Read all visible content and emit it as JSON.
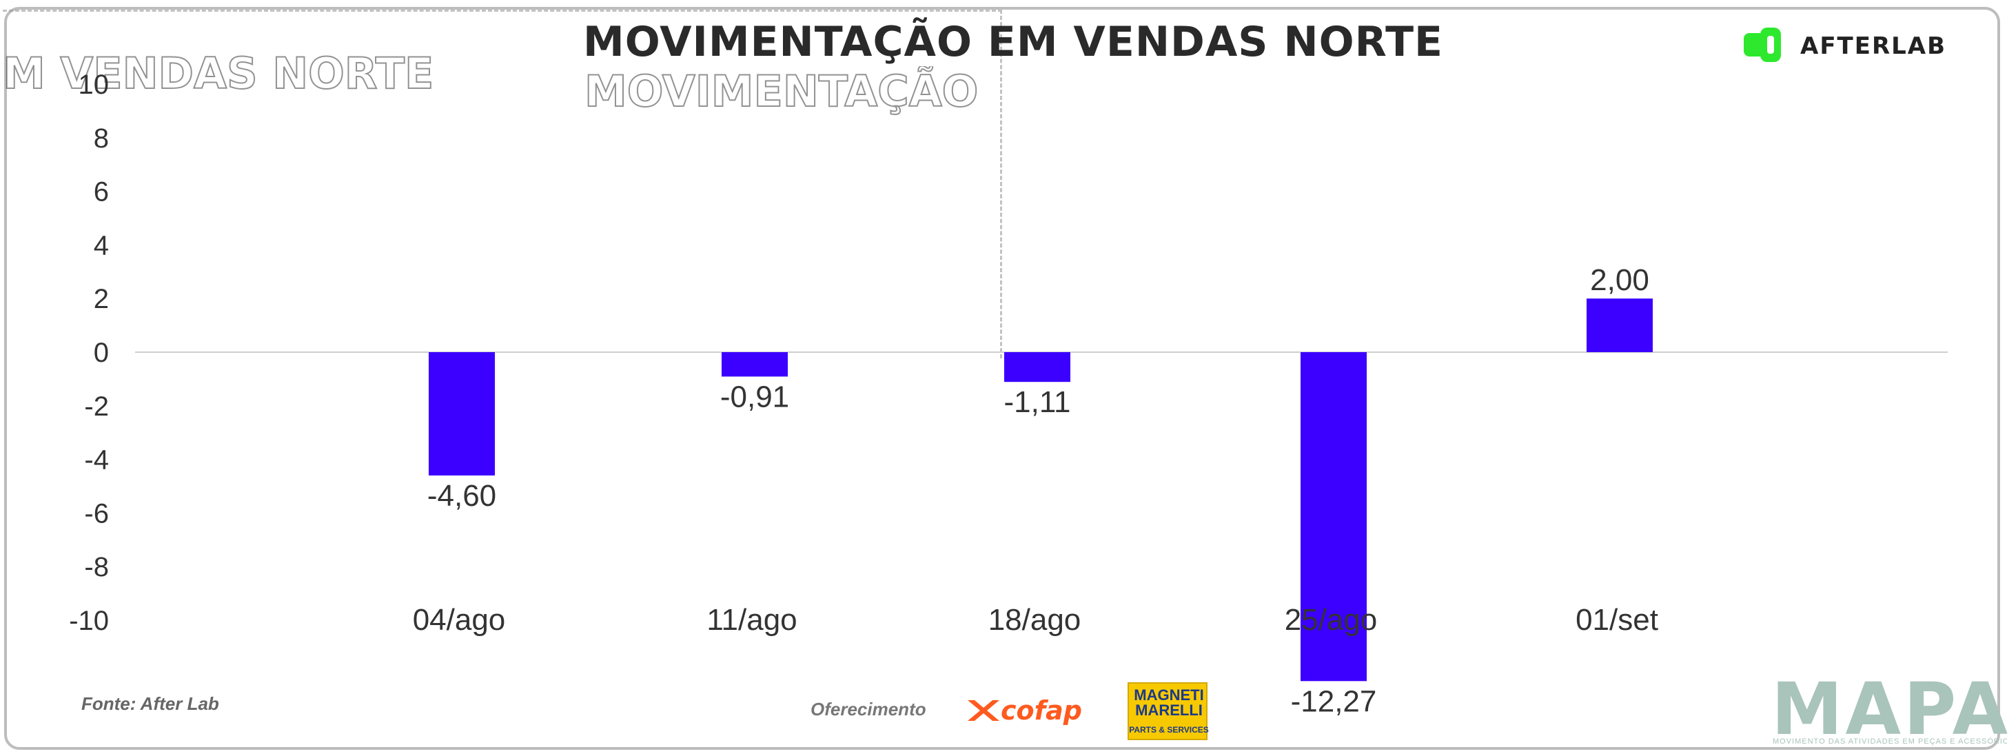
{
  "header": {
    "title": "MOVIMENTAÇÃO EM VENDAS NORTE",
    "ghost_left": "M VENDAS NORTE",
    "ghost_center": "MOVIMENTAÇÃO"
  },
  "brand": {
    "afterlab": "AFTERLAB",
    "afterlab_color": "#2ee82e"
  },
  "footer": {
    "source": "Fonte: After Lab",
    "sponsor_label": "Oferecimento",
    "cofap": "cofap",
    "magneti_name": "MAGNETI MARELLI",
    "magneti_sub": "PARTS & SERVICES",
    "mapa": "MAPA",
    "mapa_sub": "MOVIMENTO DAS ATIVIDADES EM PEÇAS E ACESSÓRIOS"
  },
  "chart_data": {
    "type": "bar",
    "title": "MOVIMENTAÇÃO EM VENDAS NORTE",
    "categories": [
      "04/ago",
      "11/ago",
      "18/ago",
      "25/ago",
      "01/set"
    ],
    "values": [
      -4.6,
      -0.91,
      -1.11,
      -12.27,
      2.0
    ],
    "value_labels": [
      "-4,60",
      "-0,91",
      "-1,11",
      "-12,27",
      "2,00"
    ],
    "yticks": [
      10,
      8,
      6,
      4,
      2,
      0,
      -2,
      -4,
      -6,
      -8,
      -10
    ],
    "ylim": [
      -10,
      10
    ],
    "bar_color": "#3b00ff",
    "grid": false,
    "legend": "none"
  }
}
